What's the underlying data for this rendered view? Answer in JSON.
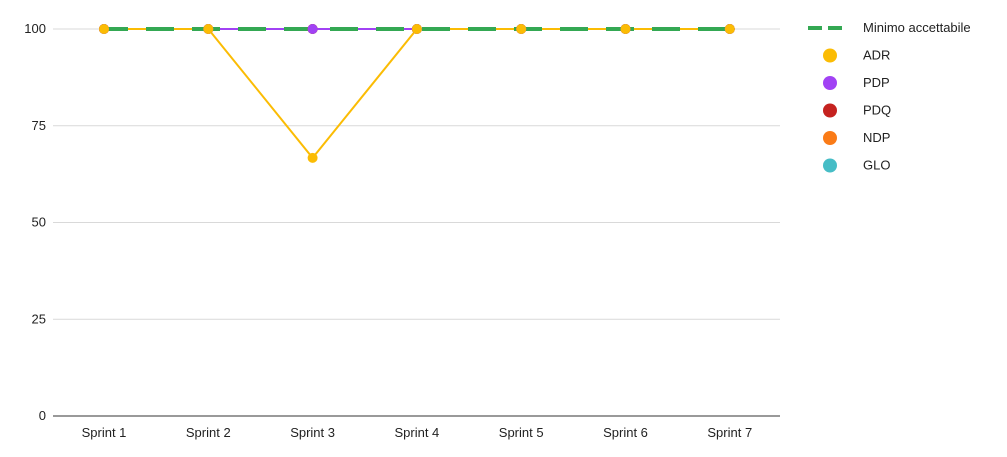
{
  "chart_data": {
    "type": "line",
    "categories": [
      "Sprint 1",
      "Sprint 2",
      "Sprint 3",
      "Sprint 4",
      "Sprint 5",
      "Sprint 6",
      "Sprint 7"
    ],
    "ylim": [
      0,
      100
    ],
    "yticks": [
      "0",
      "25",
      "50",
      "75",
      "100"
    ],
    "grid": true,
    "legend_position": "right",
    "threshold": {
      "name": "Minimo accettabile",
      "value": 100,
      "color": "#34a853",
      "style": "dashed"
    },
    "series": [
      {
        "name": "ADR",
        "color": "#fbbc04",
        "values": [
          100,
          100,
          66.7,
          100,
          100,
          100,
          100
        ]
      },
      {
        "name": "PDP",
        "color": "#a142f4",
        "values": [
          100,
          100,
          100,
          100,
          100,
          100,
          100
        ]
      },
      {
        "name": "PDQ",
        "color": "#c5221f",
        "values": [
          100,
          100,
          100,
          100,
          100,
          100,
          100
        ]
      },
      {
        "name": "NDP",
        "color": "#fa7b17",
        "values": [
          100,
          100,
          100,
          100,
          100,
          100,
          100
        ]
      },
      {
        "name": "GLO",
        "color": "#46bdc6",
        "values": [
          100,
          100,
          100,
          100,
          100,
          100,
          100
        ]
      }
    ]
  }
}
